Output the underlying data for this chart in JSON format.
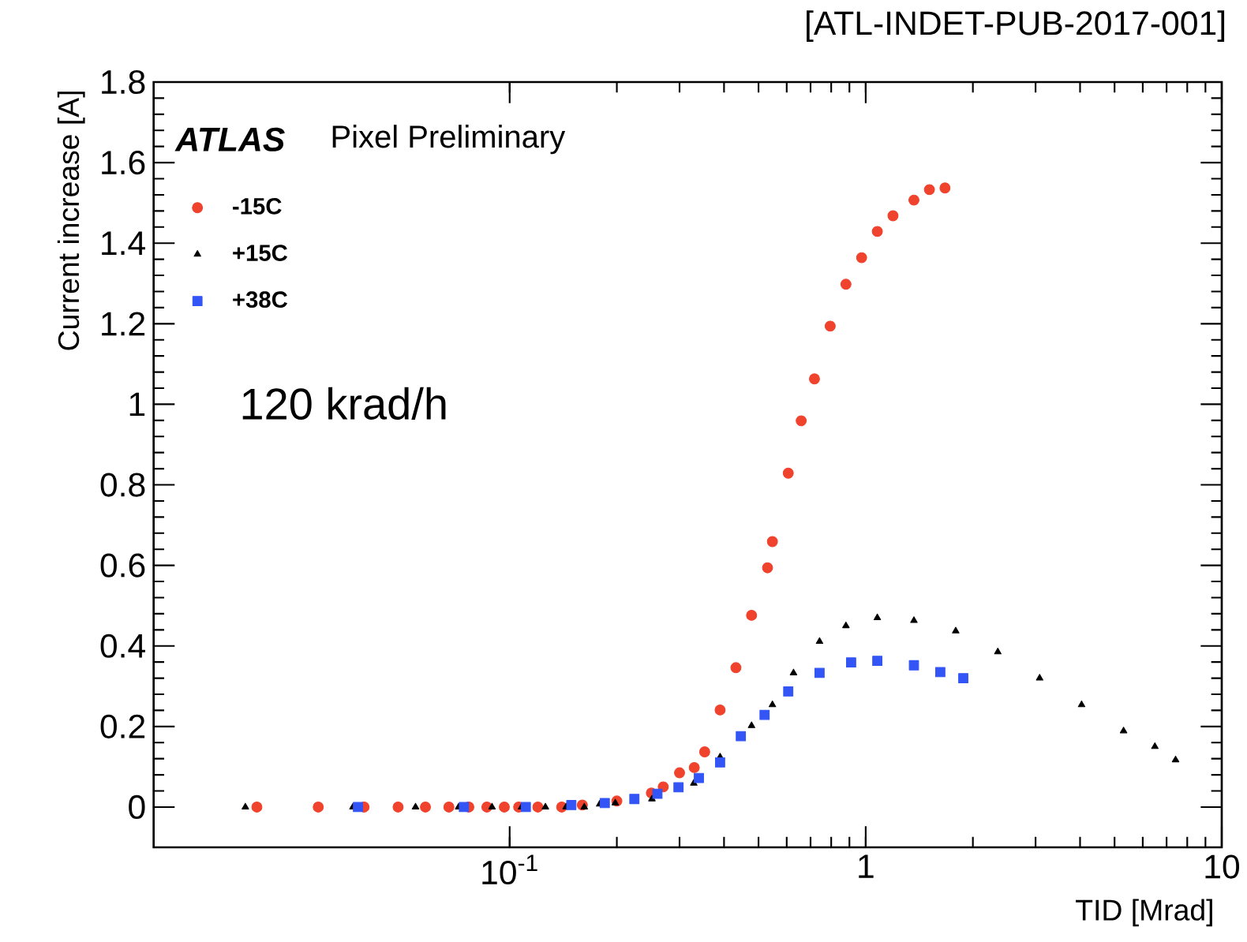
{
  "chart_data": {
    "type": "scatter",
    "title": "[ATL-INDET-PUB-2017-001]",
    "xlabel": "TID [Mrad]",
    "ylabel": "Current increase [A]",
    "annotations": [
      "ATLAS",
      "Pixel Preliminary",
      "120 krad/h"
    ],
    "log": "x",
    "xlim": [
      0.01,
      10
    ],
    "ylim": [
      -0.1,
      1.8
    ],
    "xticks": [
      {
        "value": 0.1,
        "label": "10$^{-1}$"
      },
      1,
      10
    ],
    "yticks": [
      0,
      0.2,
      0.4,
      0.6,
      0.8,
      1,
      1.2,
      1.4,
      1.6,
      1.8
    ],
    "legend": "top left",
    "grid": false,
    "series": [
      {
        "name": "-15C",
        "color": "#f0432e",
        "marker": "circle",
        "x": [
          0.0195,
          0.029,
          0.039,
          0.0486,
          0.058,
          0.0675,
          0.0768,
          0.0863,
          0.0966,
          0.106,
          0.12,
          0.14,
          0.16,
          0.2,
          0.25,
          0.27,
          0.3,
          0.33,
          0.353,
          0.39,
          0.432,
          0.478,
          0.53,
          0.547,
          0.606,
          0.659,
          0.718,
          0.795,
          0.88,
          0.974,
          1.078,
          1.193,
          1.366,
          1.51,
          1.67
        ],
        "values": [
          0,
          0,
          0,
          0,
          0,
          0,
          0,
          0,
          0,
          0,
          0,
          0,
          0.005,
          0.015,
          0.035,
          0.05,
          0.085,
          0.098,
          0.137,
          0.241,
          0.346,
          0.476,
          0.594,
          0.659,
          0.829,
          0.959,
          1.063,
          1.194,
          1.298,
          1.364,
          1.429,
          1.468,
          1.507,
          1.533,
          1.537
        ]
      },
      {
        "name": "+15C",
        "color": "#000000",
        "marker": "triangle",
        "x": [
          0.0181,
          0.0363,
          0.0544,
          0.0719,
          0.0892,
          0.108,
          0.126,
          0.144,
          0.162,
          0.179,
          0.198,
          0.251,
          0.329,
          0.39,
          0.478,
          0.547,
          0.627,
          0.742,
          0.88,
          1.078,
          1.366,
          1.79,
          2.35,
          3.08,
          4.04,
          5.3,
          6.49,
          7.42
        ],
        "values": [
          0,
          0,
          0,
          0,
          0,
          0,
          0,
          0,
          0,
          0.007,
          0.01,
          0.02,
          0.059,
          0.124,
          0.202,
          0.254,
          0.333,
          0.411,
          0.45,
          0.47,
          0.463,
          0.437,
          0.385,
          0.32,
          0.254,
          0.189,
          0.15,
          0.117
        ]
      },
      {
        "name": "+38C",
        "color": "#3355f5",
        "marker": "square",
        "x": [
          0.0375,
          0.0744,
          0.111,
          0.149,
          0.185,
          0.224,
          0.26,
          0.298,
          0.34,
          0.39,
          0.446,
          0.52,
          0.606,
          0.742,
          0.91,
          1.078,
          1.366,
          1.62,
          1.88
        ],
        "values": [
          0,
          0,
          0,
          0.005,
          0.01,
          0.02,
          0.033,
          0.049,
          0.072,
          0.111,
          0.176,
          0.229,
          0.287,
          0.333,
          0.359,
          0.363,
          0.352,
          0.335,
          0.32
        ]
      }
    ]
  }
}
